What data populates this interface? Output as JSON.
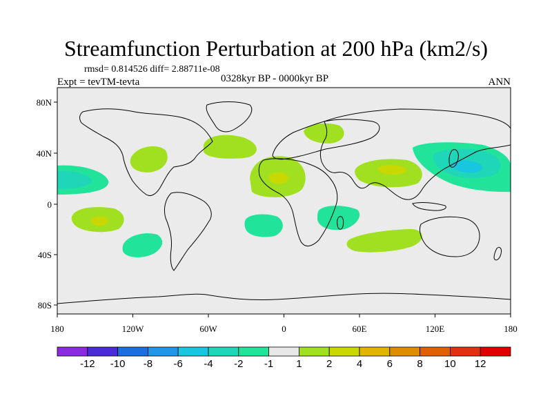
{
  "header": {
    "title": "Streamfunction Perturbation at 200 hPa (km2/s)",
    "stats": "rmsd= 0.814526 diff= 2.88711e-08",
    "experiment": "Expt = tevTM-tevta",
    "period": "0328kyr BP - 0000kyr BP",
    "season": "ANN"
  },
  "axes": {
    "x_ticks": [
      "180",
      "120W",
      "60W",
      "0",
      "60E",
      "120E",
      "180"
    ],
    "y_ticks": [
      "80N",
      "40N",
      "0",
      "40S",
      "80S"
    ]
  },
  "colorbar": {
    "labels": [
      "-12",
      "-10",
      "-8",
      "-6",
      "-4",
      "-2",
      "-1",
      "1",
      "2",
      "4",
      "6",
      "8",
      "10",
      "12"
    ],
    "colors": [
      "#8a2be2",
      "#4a2bd8",
      "#1a6ee0",
      "#1e96e8",
      "#19c6e0",
      "#1fd6b8",
      "#22e39a",
      "#e8e8e8",
      "#a0e020",
      "#c8d800",
      "#e0b400",
      "#e08c00",
      "#e06000",
      "#e03010",
      "#e00000"
    ]
  },
  "colors": {
    "ocean": "#ebebeb",
    "neg_light": "#22e39a",
    "neg_mid": "#1fd6b8",
    "neg_strong": "#19c6e0",
    "pos_light": "#a0e020",
    "pos_mid": "#c8d800"
  }
}
